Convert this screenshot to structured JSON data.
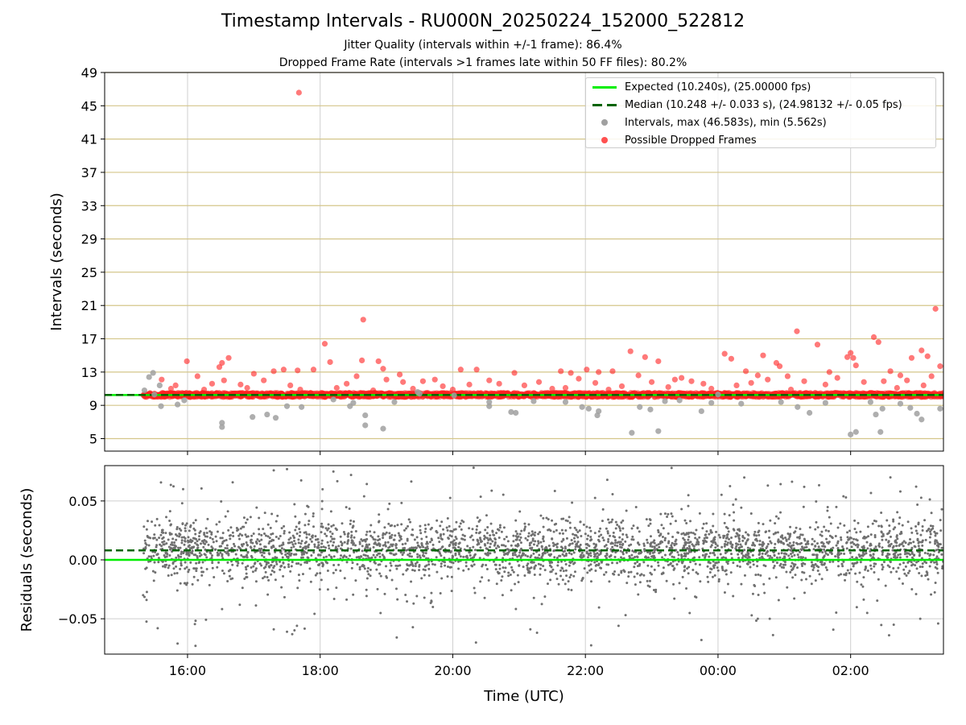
{
  "title": "Timestamp Intervals - RU000N_20250224_152000_522812",
  "subtitle_1": "Jitter Quality (intervals within +/-1 frame): 86.4%",
  "subtitle_2": "Dropped Frame Rate (intervals >1 frames late within 50 FF files): 80.2%",
  "colors": {
    "expected": "#00ee00",
    "median": "#006400",
    "intervals": "#a0a0a0",
    "dropped": "#ff2020",
    "residuals": "#707070",
    "hgrid_top": "#d4c68a",
    "grid": "#cfcfcf"
  },
  "chart_data": [
    {
      "type": "scatter",
      "name": "intervals",
      "ylabel": "Intervals (seconds)",
      "ylim": [
        3.5,
        49
      ],
      "yticks": [
        5,
        9,
        13,
        17,
        21,
        25,
        29,
        33,
        37,
        41,
        45,
        49
      ],
      "xlim": [
        14.75,
        27.4
      ],
      "xticks": [
        16,
        18,
        20,
        22,
        24,
        26
      ],
      "grid": true,
      "legend_position": "top-right",
      "legend": [
        "Expected (10.240s), (25.00000 fps)",
        "Median (10.248 +/- 0.033 s), (24.98132 +/- 0.05 fps)",
        "Intervals, max (46.583s), min (5.562s)",
        "Possible Dropped Frames"
      ],
      "expected_y": 10.24,
      "median_y": 10.248,
      "data_start_time": 15.33,
      "data_end_time": 27.4,
      "baseline_band": [
        10.0,
        10.5
      ],
      "dropped_points": [
        [
          17.68,
          46.58
        ],
        [
          18.07,
          16.4
        ],
        [
          18.15,
          14.2
        ],
        [
          18.65,
          19.3
        ],
        [
          15.99,
          14.3
        ],
        [
          16.52,
          14.1
        ],
        [
          16.62,
          14.7
        ],
        [
          16.48,
          13.6
        ],
        [
          17.3,
          13.1
        ],
        [
          17.45,
          13.3
        ],
        [
          17.66,
          13.2
        ],
        [
          18.55,
          12.5
        ],
        [
          18.63,
          14.4
        ],
        [
          18.88,
          14.3
        ],
        [
          19.25,
          11.8
        ],
        [
          18.95,
          13.4
        ],
        [
          20.12,
          13.3
        ],
        [
          20.36,
          13.3
        ],
        [
          20.55,
          12.0
        ],
        [
          20.93,
          12.9
        ],
        [
          21.63,
          13.1
        ],
        [
          21.78,
          12.9
        ],
        [
          22.02,
          13.3
        ],
        [
          22.2,
          13.0
        ],
        [
          22.41,
          13.1
        ],
        [
          22.68,
          15.5
        ],
        [
          22.9,
          14.8
        ],
        [
          23.1,
          14.3
        ],
        [
          23.35,
          12.1
        ],
        [
          23.6,
          11.9
        ],
        [
          24.1,
          15.2
        ],
        [
          24.2,
          14.6
        ],
        [
          24.42,
          13.1
        ],
        [
          24.6,
          12.6
        ],
        [
          24.68,
          15.0
        ],
        [
          24.88,
          14.1
        ],
        [
          24.93,
          13.7
        ],
        [
          25.05,
          12.5
        ],
        [
          25.19,
          17.9
        ],
        [
          25.5,
          16.3
        ],
        [
          25.68,
          13.0
        ],
        [
          25.95,
          14.8
        ],
        [
          26.0,
          15.3
        ],
        [
          26.04,
          14.7
        ],
        [
          26.08,
          13.8
        ],
        [
          26.35,
          17.2
        ],
        [
          26.42,
          16.6
        ],
        [
          26.6,
          13.1
        ],
        [
          26.75,
          12.6
        ],
        [
          26.92,
          14.7
        ],
        [
          27.07,
          15.6
        ],
        [
          27.16,
          14.9
        ],
        [
          27.28,
          20.6
        ],
        [
          27.35,
          13.7
        ],
        [
          15.61,
          12.1
        ],
        [
          15.82,
          11.4
        ],
        [
          16.15,
          12.5
        ],
        [
          16.37,
          11.6
        ],
        [
          16.55,
          12.0
        ],
        [
          16.8,
          11.5
        ],
        [
          17.0,
          12.8
        ],
        [
          17.15,
          12.0
        ],
        [
          17.55,
          11.4
        ],
        [
          17.9,
          13.3
        ],
        [
          18.25,
          11.1
        ],
        [
          18.4,
          11.6
        ],
        [
          19.0,
          12.1
        ],
        [
          19.2,
          12.7
        ],
        [
          19.55,
          11.9
        ],
        [
          19.73,
          12.1
        ],
        [
          19.85,
          11.3
        ],
        [
          20.25,
          11.5
        ],
        [
          20.7,
          11.6
        ],
        [
          21.08,
          11.4
        ],
        [
          21.3,
          11.8
        ],
        [
          21.5,
          11.0
        ],
        [
          21.9,
          12.2
        ],
        [
          22.15,
          11.7
        ],
        [
          22.55,
          11.3
        ],
        [
          22.8,
          12.6
        ],
        [
          23.0,
          11.8
        ],
        [
          23.25,
          11.2
        ],
        [
          23.45,
          12.3
        ],
        [
          23.78,
          11.6
        ],
        [
          24.28,
          11.4
        ],
        [
          24.5,
          11.7
        ],
        [
          24.75,
          12.1
        ],
        [
          25.3,
          11.9
        ],
        [
          25.62,
          11.5
        ],
        [
          25.8,
          12.3
        ],
        [
          26.2,
          11.8
        ],
        [
          26.5,
          11.9
        ],
        [
          26.85,
          12.0
        ],
        [
          27.1,
          11.4
        ],
        [
          27.22,
          12.5
        ],
        [
          15.75,
          11.0
        ],
        [
          16.25,
          10.9
        ],
        [
          16.9,
          11.1
        ],
        [
          17.7,
          10.9
        ],
        [
          18.8,
          10.8
        ],
        [
          19.4,
          11.0
        ],
        [
          20.0,
          10.9
        ],
        [
          21.7,
          11.1
        ],
        [
          22.35,
          10.9
        ],
        [
          23.9,
          11.0
        ],
        [
          25.1,
          10.9
        ],
        [
          26.7,
          11.1
        ]
      ],
      "interval_points": [
        [
          15.35,
          10.8
        ],
        [
          15.42,
          12.4
        ],
        [
          15.48,
          12.9
        ],
        [
          15.5,
          10.3
        ],
        [
          15.58,
          11.4
        ],
        [
          15.6,
          8.9
        ],
        [
          15.85,
          9.1
        ],
        [
          16.52,
          6.9
        ],
        [
          16.52,
          6.4
        ],
        [
          16.98,
          7.6
        ],
        [
          17.2,
          7.9
        ],
        [
          17.33,
          7.5
        ],
        [
          17.5,
          8.9
        ],
        [
          17.72,
          8.8
        ],
        [
          18.45,
          8.9
        ],
        [
          18.5,
          9.3
        ],
        [
          18.68,
          7.8
        ],
        [
          18.68,
          6.6
        ],
        [
          18.95,
          6.2
        ],
        [
          19.12,
          9.4
        ],
        [
          19.47,
          10.6
        ],
        [
          19.5,
          10.4
        ],
        [
          20.02,
          10.2
        ],
        [
          20.55,
          9.4
        ],
        [
          20.55,
          8.9
        ],
        [
          20.88,
          8.2
        ],
        [
          20.95,
          8.1
        ],
        [
          21.22,
          9.5
        ],
        [
          21.7,
          9.4
        ],
        [
          21.95,
          8.8
        ],
        [
          22.05,
          8.6
        ],
        [
          22.18,
          7.8
        ],
        [
          22.2,
          8.3
        ],
        [
          22.7,
          5.7
        ],
        [
          22.82,
          8.8
        ],
        [
          22.98,
          8.5
        ],
        [
          23.1,
          5.9
        ],
        [
          23.2,
          9.5
        ],
        [
          23.42,
          9.6
        ],
        [
          23.75,
          8.3
        ],
        [
          23.9,
          9.3
        ],
        [
          24.0,
          10.3
        ],
        [
          24.35,
          9.2
        ],
        [
          24.95,
          9.4
        ],
        [
          25.2,
          8.8
        ],
        [
          25.38,
          8.1
        ],
        [
          25.62,
          9.3
        ],
        [
          26.0,
          5.5
        ],
        [
          26.08,
          5.8
        ],
        [
          26.3,
          9.4
        ],
        [
          26.38,
          7.9
        ],
        [
          26.45,
          5.8
        ],
        [
          26.48,
          8.6
        ],
        [
          26.75,
          9.2
        ],
        [
          26.9,
          8.7
        ],
        [
          27.0,
          8.0
        ],
        [
          27.07,
          7.3
        ],
        [
          27.35,
          8.6
        ],
        [
          15.95,
          9.6
        ],
        [
          18.2,
          9.7
        ]
      ]
    },
    {
      "type": "scatter",
      "name": "residuals",
      "xlabel": "Time (UTC)",
      "ylabel": "Residuals (seconds)",
      "ylim": [
        -0.08,
        0.08
      ],
      "yticks": [
        -0.05,
        0.0,
        0.05
      ],
      "ytick_labels": [
        "−0.05",
        "0.00",
        "0.05"
      ],
      "xlim": [
        14.75,
        27.4
      ],
      "xticks": [
        16,
        18,
        20,
        22,
        24,
        26
      ],
      "xtick_labels": [
        "16:00",
        "18:00",
        "20:00",
        "22:00",
        "00:00",
        "02:00"
      ],
      "expected_y": 0.0,
      "median_y": 0.008,
      "data_start_time": 15.33,
      "data_end_time": 27.4,
      "point_count": 3200,
      "core_spread": 0.012,
      "outliers": [
        [
          17.3,
          0.076
        ],
        [
          17.5,
          0.077
        ],
        [
          18.2,
          0.075
        ],
        [
          17.3,
          -0.059
        ],
        [
          17.5,
          -0.061
        ],
        [
          17.65,
          -0.056
        ],
        [
          15.55,
          -0.058
        ],
        [
          15.85,
          -0.071
        ],
        [
          16.12,
          -0.073
        ],
        [
          19.7,
          -0.04
        ],
        [
          21.17,
          -0.059
        ],
        [
          22.5,
          -0.056
        ],
        [
          23.3,
          0.078
        ],
        [
          23.75,
          -0.068
        ],
        [
          24.6,
          -0.05
        ],
        [
          24.78,
          -0.05
        ],
        [
          26.25,
          -0.045
        ],
        [
          26.6,
          0.07
        ],
        [
          26.65,
          -0.055
        ],
        [
          27.05,
          -0.05
        ],
        [
          27.32,
          -0.054
        ],
        [
          15.33,
          -0.03
        ],
        [
          26.75,
          0.058
        ],
        [
          25.3,
          0.062
        ]
      ]
    }
  ]
}
